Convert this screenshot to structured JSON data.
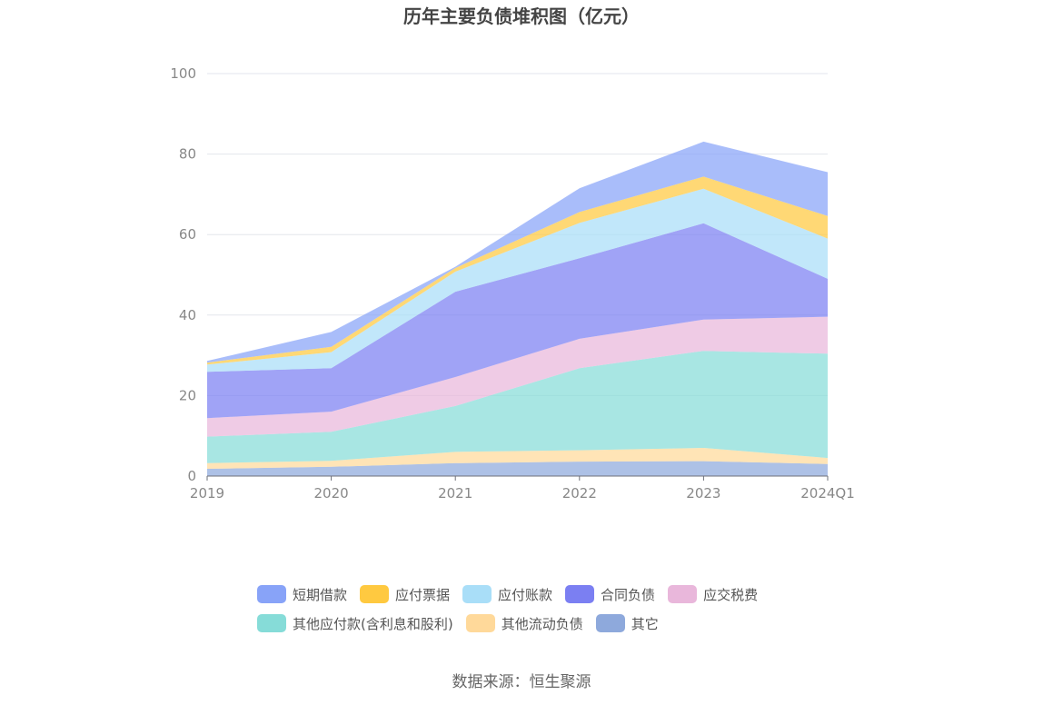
{
  "chart_data": {
    "type": "area",
    "stacked": true,
    "title": "历年主要负债堆积图（亿元）",
    "categories": [
      "2019",
      "2020",
      "2021",
      "2022",
      "2023",
      "2024Q1"
    ],
    "ylim": [
      0,
      100
    ],
    "yticks": [
      0,
      20,
      40,
      60,
      80,
      100
    ],
    "grid": true,
    "legend_position": "bottom",
    "series": [
      {
        "name": "其它",
        "color": "#8ea9dc",
        "values": [
          1.8,
          2.3,
          3.2,
          3.6,
          3.7,
          3.0
        ]
      },
      {
        "name": "其他流动负债",
        "color": "#ffd99a",
        "values": [
          1.4,
          1.5,
          2.8,
          2.8,
          3.3,
          1.5
        ]
      },
      {
        "name": "其他应付款(含利息和股利)",
        "color": "#86dcd8",
        "values": [
          6.6,
          7.2,
          11.4,
          20.4,
          24.1,
          25.9
        ]
      },
      {
        "name": "应交税费",
        "color": "#e9b7db",
        "values": [
          4.6,
          5.0,
          7.2,
          7.3,
          7.8,
          9.2
        ]
      },
      {
        "name": "合同负债",
        "color": "#7b7ff2",
        "values": [
          11.5,
          10.8,
          21.2,
          20.0,
          23.9,
          9.4
        ]
      },
      {
        "name": "应付账款",
        "color": "#a9def8",
        "values": [
          1.8,
          4.0,
          5.0,
          8.8,
          8.6,
          10.0
        ]
      },
      {
        "name": "应付票据",
        "color": "#ffc940",
        "values": [
          0.5,
          1.3,
          0.9,
          2.7,
          3.0,
          5.6
        ]
      },
      {
        "name": "短期借款",
        "color": "#88a3f8",
        "values": [
          0.4,
          3.7,
          0.3,
          5.9,
          8.7,
          10.9
        ]
      }
    ]
  },
  "legend": {
    "rows": [
      [
        {
          "name": "短期借款",
          "color": "#88a3f8"
        },
        {
          "name": "应付票据",
          "color": "#ffc940"
        },
        {
          "name": "应付账款",
          "color": "#a9def8"
        },
        {
          "name": "合同负债",
          "color": "#7b7ff2"
        },
        {
          "name": "应交税费",
          "color": "#e9b7db"
        }
      ],
      [
        {
          "name": "其他应付款(含利息和股利)",
          "color": "#86dcd8"
        },
        {
          "name": "其他流动负债",
          "color": "#ffd99a"
        },
        {
          "name": "其它",
          "color": "#8ea9dc"
        }
      ]
    ]
  },
  "source": "数据来源：恒生聚源"
}
